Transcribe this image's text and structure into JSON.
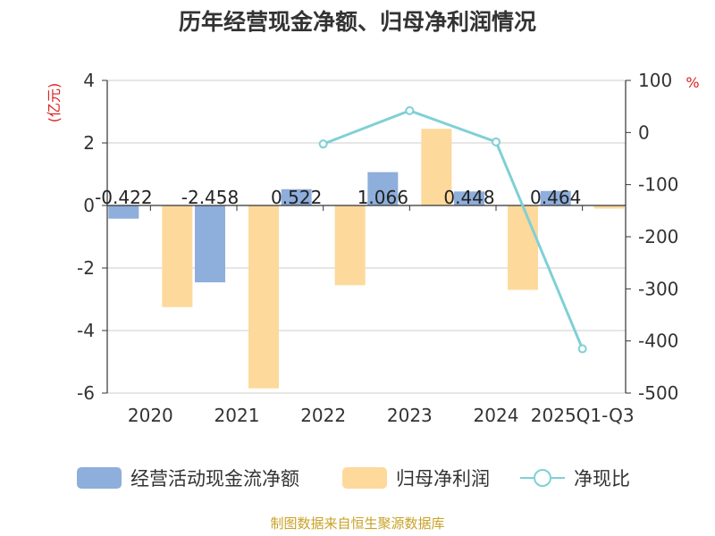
{
  "chart_data": {
    "type": "bar",
    "title": "历年经营现金净额、归母净利润情况",
    "categories": [
      "2020",
      "2021",
      "2022",
      "2023",
      "2024",
      "2025Q1-Q3"
    ],
    "left_axis": {
      "unit": "(亿元)",
      "ylim": [
        -6,
        4
      ],
      "ticks": [
        4,
        2,
        0,
        -2,
        -4,
        -6
      ]
    },
    "right_axis": {
      "unit": "%",
      "ylim": [
        -500,
        100
      ],
      "ticks": [
        100,
        0,
        -100,
        -200,
        -300,
        -400,
        -500
      ]
    },
    "series": [
      {
        "name": "经营活动现金流净额",
        "type": "bar",
        "axis": "left",
        "color": "#8eaedb",
        "values": [
          -0.422,
          -2.458,
          0.522,
          1.066,
          0.448,
          0.464
        ],
        "labels": [
          "-0.422",
          "-2.458",
          "0.522",
          "1.066",
          "0.448",
          "0.464"
        ]
      },
      {
        "name": "归母净利润",
        "type": "bar",
        "axis": "left",
        "color": "#fdd99b",
        "values": [
          -3.25,
          -5.85,
          -2.55,
          2.45,
          -2.7,
          -0.1
        ]
      },
      {
        "name": "净现比",
        "type": "line",
        "axis": "right",
        "color": "#7fd0d6",
        "values": [
          null,
          null,
          -22,
          42,
          -18,
          -415
        ]
      }
    ],
    "grid": true,
    "legend_position": "bottom",
    "source": "制图数据来自恒生聚源数据库"
  }
}
